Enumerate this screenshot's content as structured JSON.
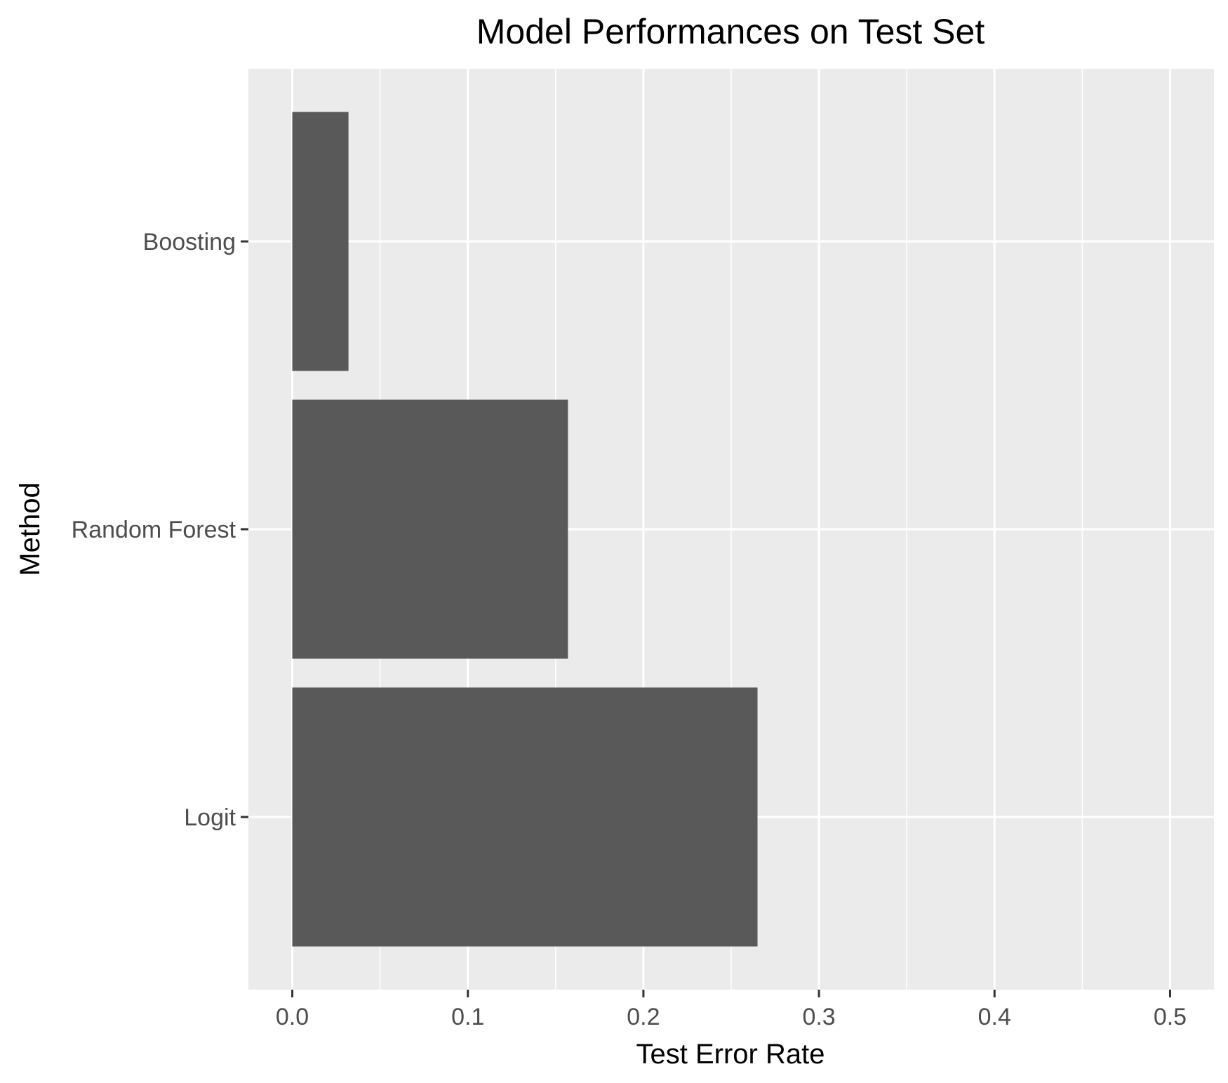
{
  "chart_data": {
    "type": "bar",
    "orientation": "horizontal",
    "title": "Model Performances on Test Set",
    "xlabel": "Test Error Rate",
    "ylabel": "Method",
    "categories": [
      "Logit",
      "Random Forest",
      "Boosting"
    ],
    "values": [
      0.265,
      0.157,
      0.032
    ],
    "xlim": [
      -0.025,
      0.525
    ],
    "x_ticks": [
      0.0,
      0.1,
      0.2,
      0.3,
      0.4,
      0.5
    ],
    "x_tick_labels": [
      "0.0",
      "0.1",
      "0.2",
      "0.3",
      "0.4",
      "0.5"
    ],
    "grid": true,
    "legend": "none",
    "colors": {
      "bar": "#595959",
      "panel": "#ebebeb",
      "grid": "#ffffff",
      "tick_text": "#4d4d4d",
      "title_text": "#000000"
    }
  }
}
